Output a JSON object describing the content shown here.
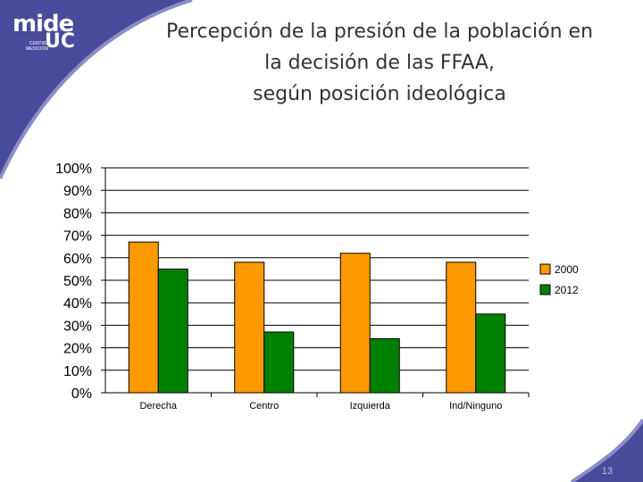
{
  "slide": {
    "title_lines": [
      "Percepción de la presión de la población en",
      "la decisión de las FFAA,",
      "según posición ideológica"
    ],
    "page_number": "13",
    "accent_color": "#4a4a9c"
  },
  "logo": {
    "main": "mide",
    "uc": "UC",
    "sub_lines": [
      "CENTRO",
      "MEDICIÓN"
    ]
  },
  "chart_data": {
    "type": "bar",
    "categories": [
      "Derecha",
      "Centro",
      "Izquierda",
      "Ind/Ninguno"
    ],
    "series": [
      {
        "name": "2000",
        "values": [
          67,
          58,
          62,
          58
        ],
        "color": "#ff9900"
      },
      {
        "name": "2012",
        "values": [
          55,
          27,
          24,
          35
        ],
        "color": "#008000"
      }
    ],
    "y_ticks": [
      "100%",
      "90%",
      "80%",
      "70%",
      "60%",
      "50%",
      "40%",
      "30%",
      "20%",
      "10%",
      "0%"
    ],
    "ylim": [
      0,
      100
    ],
    "grid": true,
    "legend_position": "right",
    "title": "",
    "xlabel": "",
    "ylabel": ""
  }
}
